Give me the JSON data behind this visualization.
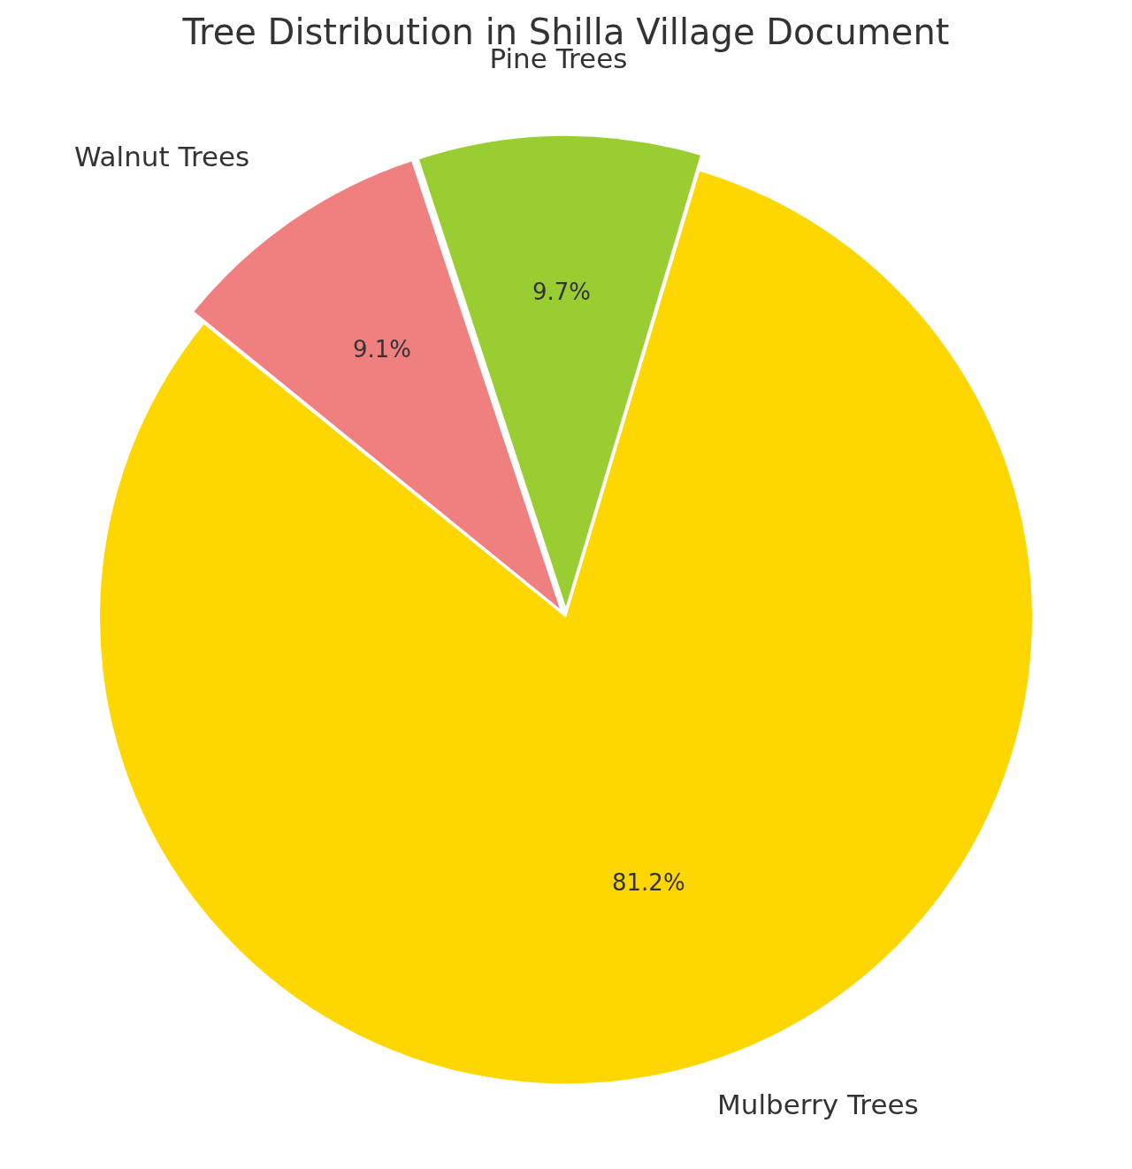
{
  "chart_data": {
    "type": "pie",
    "title": "Tree Distribution in Shilla Village Document",
    "categories": [
      "Walnut Trees",
      "Pine Trees",
      "Mulberry Trees"
    ],
    "values": [
      9.1,
      9.7,
      81.2
    ],
    "colors": [
      "#f08080",
      "#9acd32",
      "#ffd700"
    ],
    "value_labels": [
      "9.1%",
      "9.7%",
      "81.2%"
    ],
    "legend": false
  }
}
